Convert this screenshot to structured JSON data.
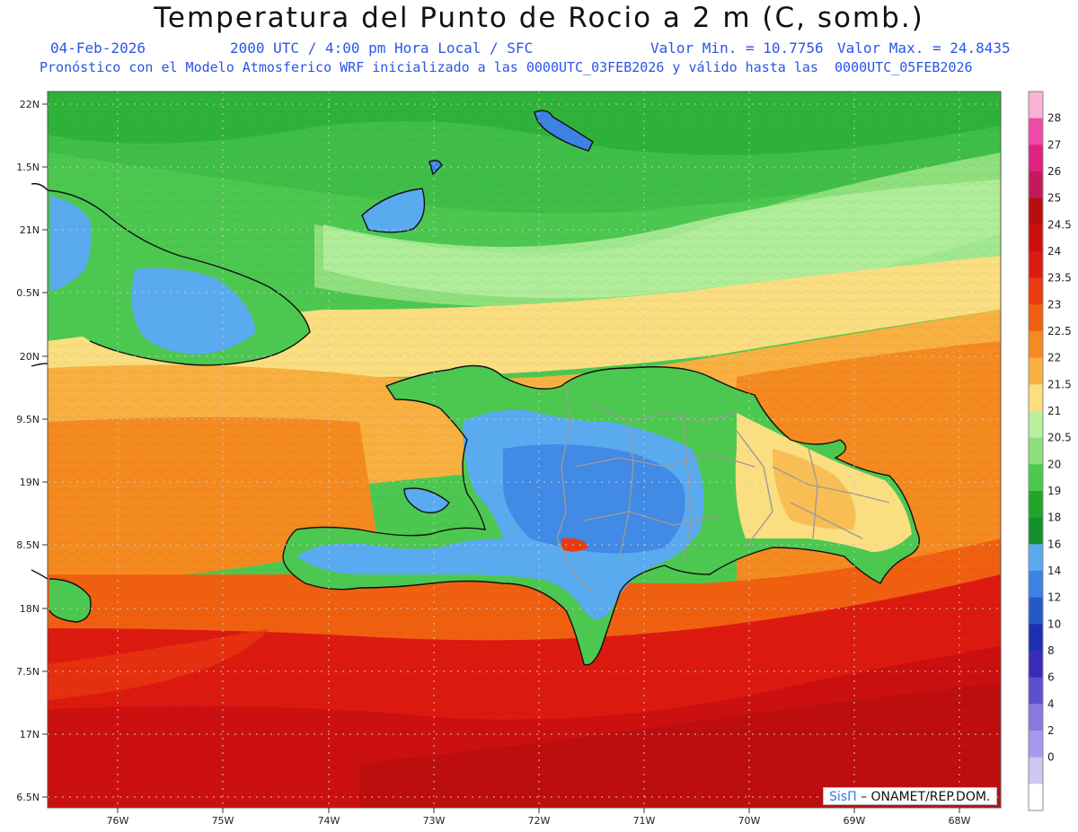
{
  "header": {
    "title": "Temperatura del Punto de Rocio a 2 m (C, somb.)",
    "date": "04-Feb-2026",
    "time": "2000 UTC / 4:00 pm Hora Local / SFC",
    "min_label": "Valor Min. = 10.7756",
    "max_label": "Valor Max. = 24.8435",
    "model_line": "Pronóstico con el Modelo Atmosferico WRF inicializado a las 0000UTC_03FEB2026 y válido hasta las  0000UTC_05FEB2026"
  },
  "axes": {
    "lat_labels": [
      "22N",
      "1.5N",
      "21N",
      "0.5N",
      "20N",
      "9.5N",
      "19N",
      "8.5N",
      "18N",
      "7.5N",
      "17N",
      "6.5N"
    ],
    "lon_labels": [
      "76W",
      "75W",
      "74W",
      "73W",
      "72W",
      "71W",
      "70W",
      "69W",
      "68W"
    ]
  },
  "legend": {
    "labels": [
      "28",
      "27",
      "26",
      "25",
      "24.5",
      "24",
      "23.5",
      "23",
      "22.5",
      "22",
      "21.5",
      "21",
      "20.5",
      "20",
      "19",
      "18",
      "16",
      "14",
      "12",
      "10",
      "8",
      "6",
      "4",
      "2",
      "0"
    ],
    "colors": [
      "#f6b3d6",
      "#ef4aa8",
      "#e0227e",
      "#c31a5c",
      "#b80e0e",
      "#cc1010",
      "#dd1a10",
      "#ea3a10",
      "#f06010",
      "#f58a20",
      "#f8b040",
      "#fbde80",
      "#b8f0a0",
      "#8ee07c",
      "#4cc850",
      "#1fa52a",
      "#14902a",
      "#5aaaf0",
      "#3b82e2",
      "#2559c8",
      "#1d2fb0",
      "#3a2ab8",
      "#5a50d0",
      "#8878e0",
      "#a898ec",
      "#ccc8f2",
      "#ffffff"
    ]
  },
  "credit": {
    "brand": "SisΠ",
    "text": "– ONAMET/REP.DOM."
  }
}
